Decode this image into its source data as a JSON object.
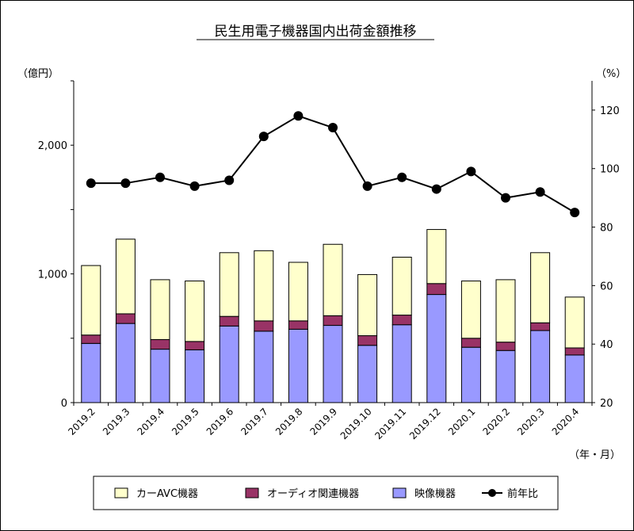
{
  "chart_data": {
    "type": "bar",
    "title": "民生用電子機器国内出荷金額推移",
    "left_unit": "（億円）",
    "right_unit": "（%）",
    "x_unit": "（年・月）",
    "categories": [
      "2019.2",
      "2019.3",
      "2019.4",
      "2019.5",
      "2019.6",
      "2019.7",
      "2019.8",
      "2019.9",
      "2019.10",
      "2019.11",
      "2019.12",
      "2020.1",
      "2020.2",
      "2020.3",
      "2020.4"
    ],
    "left_axis": {
      "min": 0,
      "max": 2500,
      "ticks": [
        0,
        1000,
        2000
      ],
      "tick_labels": [
        "0",
        "1,000",
        "2,000"
      ]
    },
    "right_axis": {
      "min": 20,
      "max": 130,
      "ticks": [
        20,
        40,
        60,
        80,
        100,
        120
      ],
      "tick_labels": [
        "20",
        "40",
        "60",
        "80",
        "100",
        "120"
      ]
    },
    "stacked": true,
    "series": [
      {
        "name": "映像機器",
        "color": "#9999ff",
        "axis": "left",
        "values": [
          460,
          615,
          415,
          410,
          595,
          555,
          570,
          600,
          445,
          605,
          840,
          430,
          405,
          560,
          370
        ]
      },
      {
        "name": "オーディオ関連機器",
        "color": "#993366",
        "axis": "left",
        "values": [
          65,
          75,
          75,
          65,
          75,
          80,
          65,
          75,
          75,
          75,
          85,
          70,
          65,
          60,
          55
        ]
      },
      {
        "name": "カーAVC機器",
        "color": "#ffffcc",
        "axis": "left",
        "values": [
          540,
          580,
          465,
          470,
          495,
          545,
          455,
          555,
          475,
          450,
          420,
          445,
          485,
          545,
          395
        ]
      },
      {
        "name": "前年比",
        "color": "#000000",
        "axis": "right",
        "type": "line",
        "values": [
          95,
          95,
          97,
          94,
          96,
          111,
          118,
          114,
          94,
          97,
          93,
          99,
          90,
          92,
          85
        ]
      }
    ],
    "legend": [
      "カーAVC機器",
      "オーディオ関連機器",
      "映像機器",
      "前年比"
    ],
    "legend_position": "bottom",
    "grid": false
  }
}
